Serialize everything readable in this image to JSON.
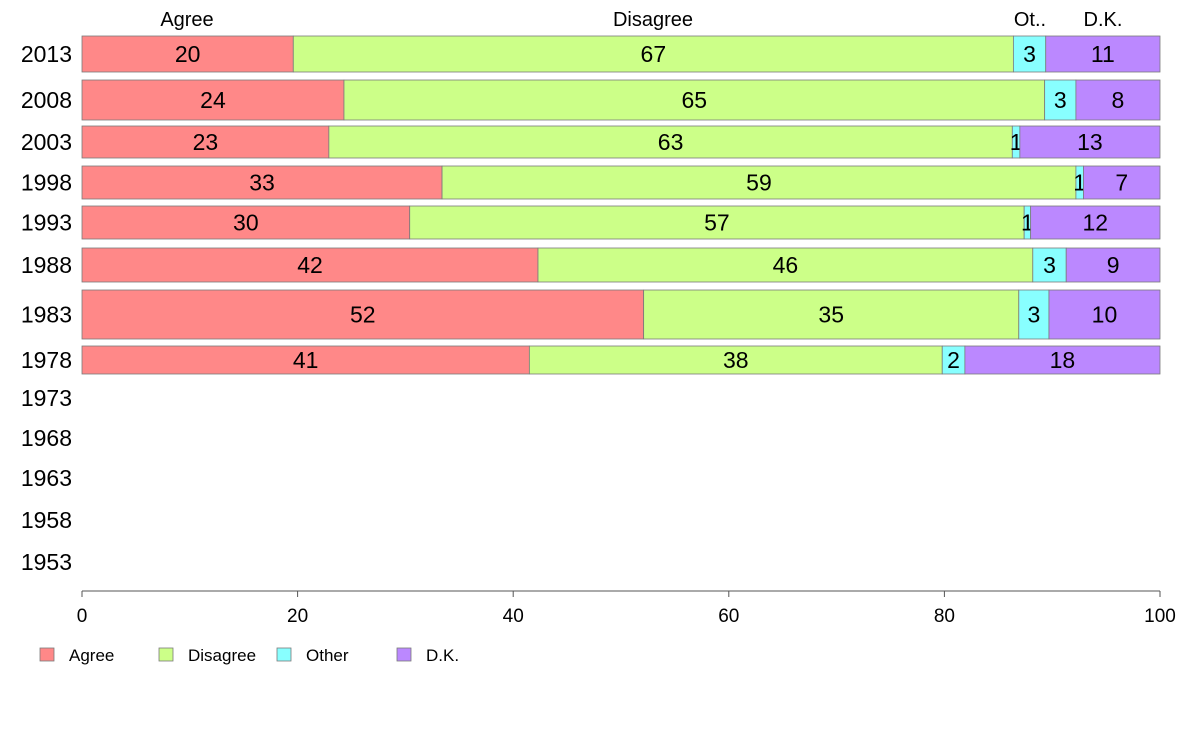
{
  "chart_data": {
    "type": "bar",
    "orientation": "horizontal",
    "stacked": true,
    "title": "",
    "xlabel": "",
    "ylabel": "",
    "xlim": [
      0,
      100
    ],
    "x_ticks": [
      0,
      20,
      40,
      60,
      80,
      100
    ],
    "grid": false,
    "legend_position": "bottom-left",
    "categories": [
      "2013",
      "2008",
      "2003",
      "1998",
      "1993",
      "1988",
      "1983",
      "1978",
      "1973",
      "1968",
      "1963",
      "1958",
      "1953"
    ],
    "top_labels": [
      "Agree",
      "Disagree",
      "Ot..",
      "D.K."
    ],
    "series": [
      {
        "name": "Agree",
        "color": "#ff8888",
        "values": [
          19.6,
          24.3,
          22.9,
          33.4,
          30.4,
          42.3,
          52.1,
          41.5,
          null,
          null,
          null,
          null,
          null
        ],
        "labels": [
          "20",
          "24",
          "23",
          "33",
          "30",
          "42",
          "52",
          "41",
          "",
          "",
          "",
          "",
          ""
        ]
      },
      {
        "name": "Disagree",
        "color": "#ccff88",
        "values": [
          66.8,
          65.0,
          63.4,
          58.8,
          57.0,
          45.9,
          34.8,
          38.3,
          null,
          null,
          null,
          null,
          null
        ],
        "labels": [
          "67",
          "65",
          "63",
          "59",
          "57",
          "46",
          "35",
          "38",
          "",
          "",
          "",
          "",
          ""
        ]
      },
      {
        "name": "Other",
        "color": "#88ffff",
        "values": [
          3.0,
          2.9,
          0.7,
          0.7,
          0.6,
          3.1,
          2.8,
          2.1,
          null,
          null,
          null,
          null,
          null
        ],
        "labels": [
          "3",
          "3",
          "1",
          "1",
          "1",
          "3",
          "3",
          "2",
          "",
          "",
          "",
          "",
          ""
        ]
      },
      {
        "name": "D.K.",
        "color": "#bb88ff",
        "values": [
          10.6,
          7.8,
          13.0,
          7.1,
          12.0,
          8.7,
          10.3,
          18.1,
          null,
          null,
          null,
          null,
          null
        ],
        "labels": [
          "11",
          "8",
          "13",
          "7",
          "12",
          "9",
          "10",
          "18",
          "",
          "",
          "",
          "",
          ""
        ]
      }
    ]
  }
}
